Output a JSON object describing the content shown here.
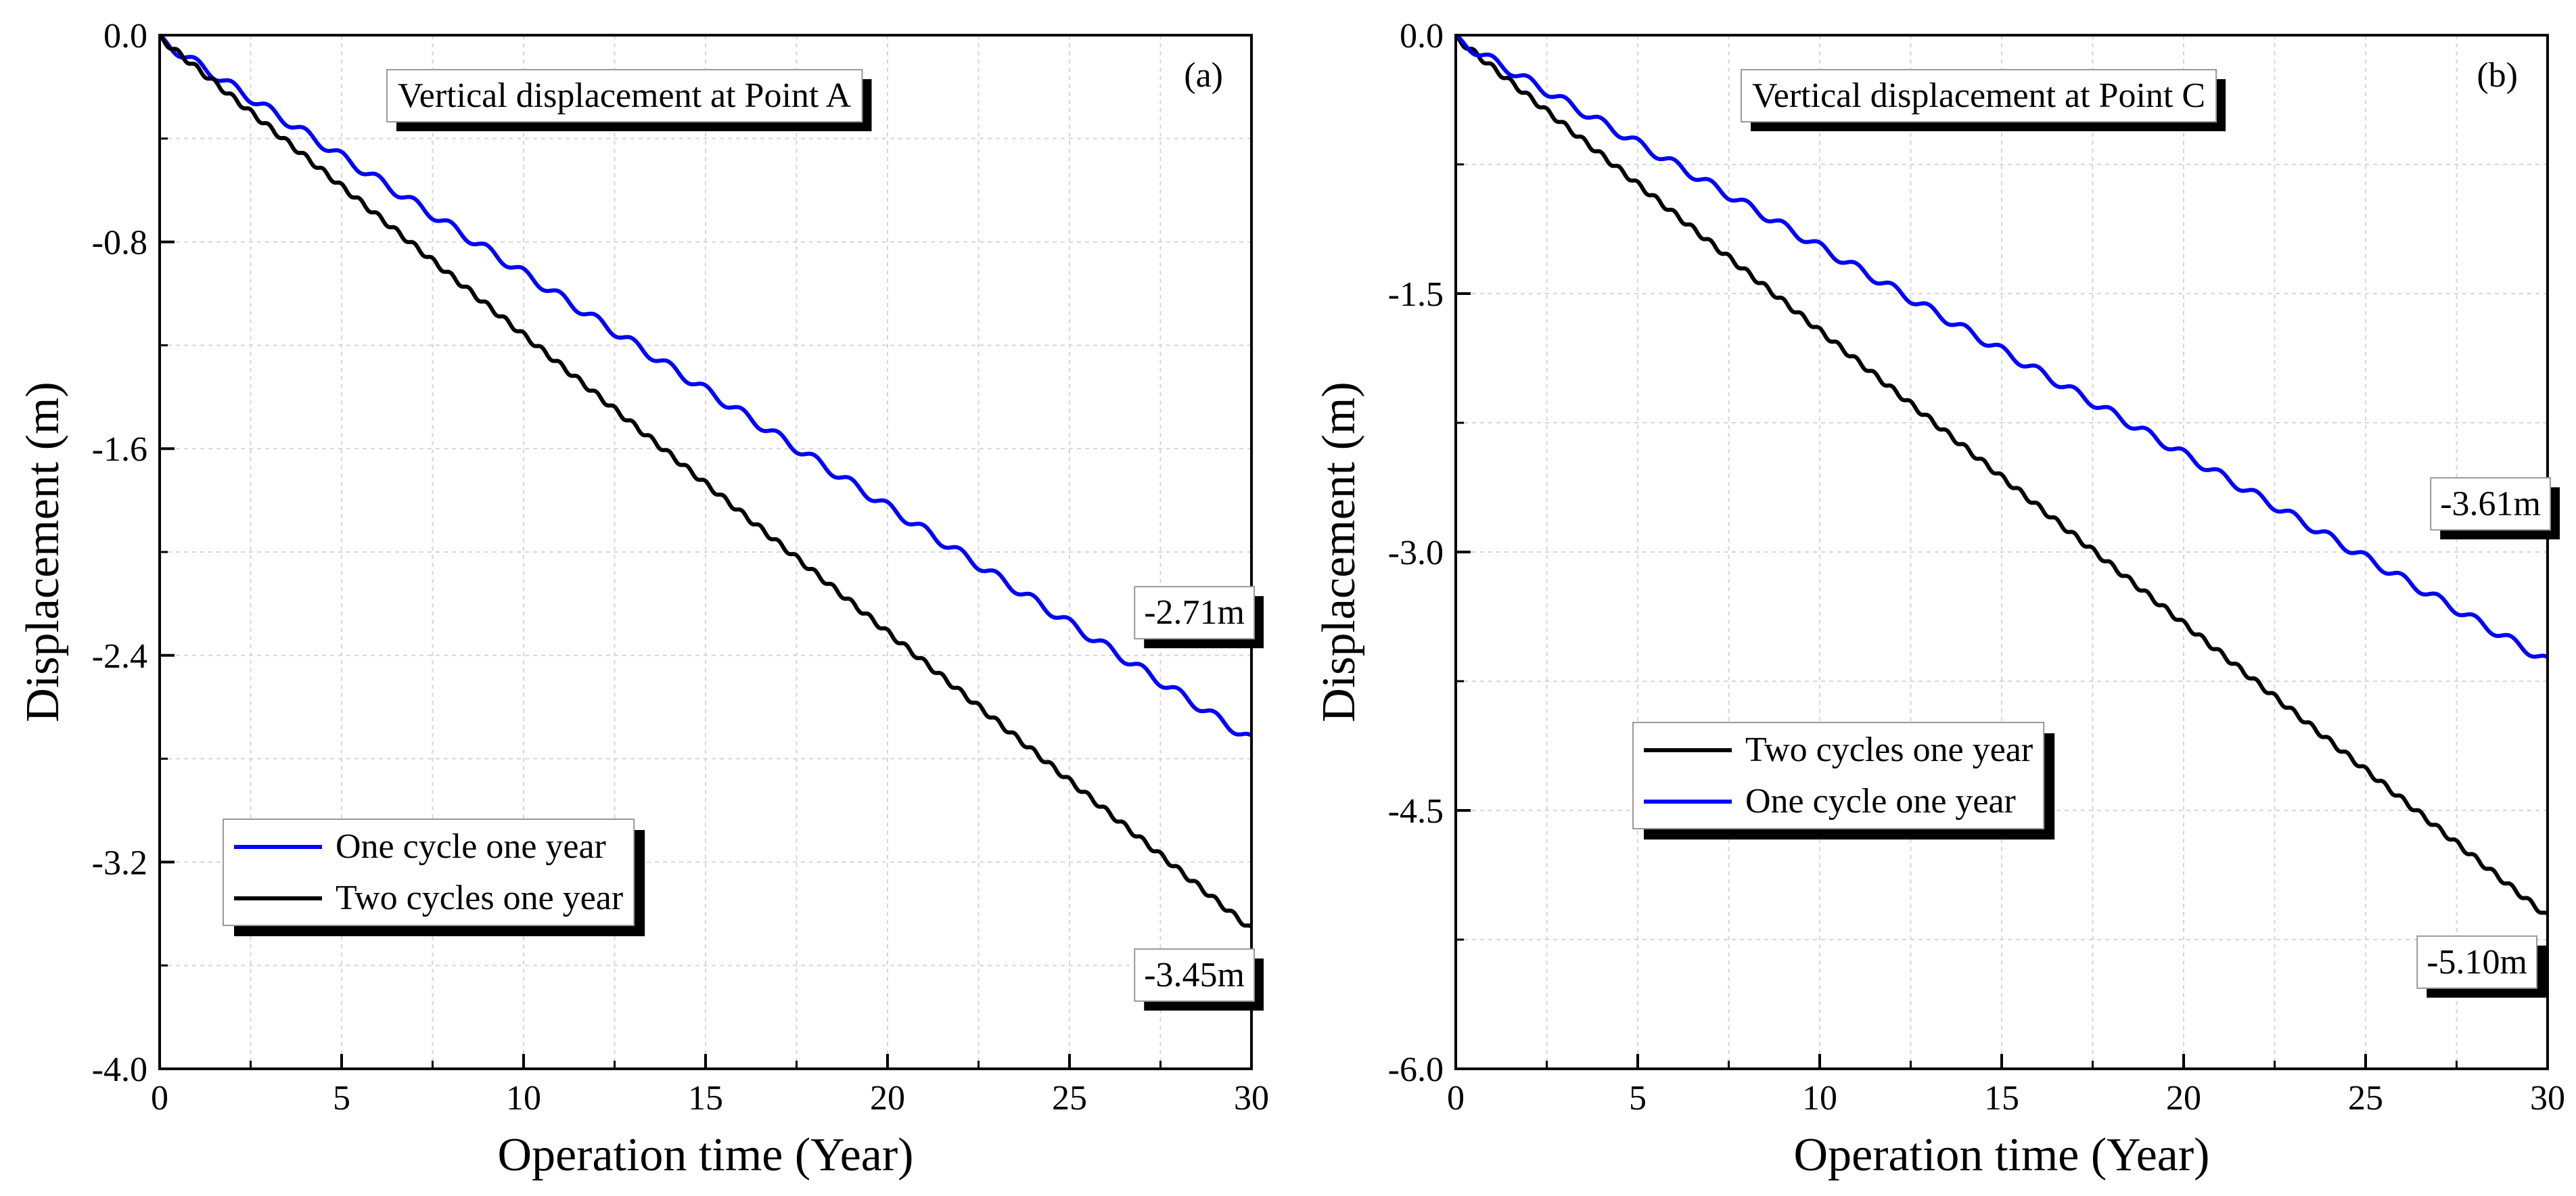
{
  "chart_data": [
    {
      "type": "line",
      "panel_label": "(a)",
      "title": "Vertical displacement at Point A",
      "xlabel": "Operation time (Year)",
      "ylabel": "Displacement (m)",
      "xlim": [
        0,
        30
      ],
      "ylim": [
        -4.0,
        0.0
      ],
      "xticks": [
        0,
        5,
        10,
        15,
        20,
        25,
        30
      ],
      "xtick_labels": [
        "0",
        "5",
        "10",
        "15",
        "20",
        "25",
        "30"
      ],
      "yticks": [
        0.0,
        -0.8,
        -1.6,
        -2.4,
        -3.2,
        -4.0
      ],
      "ytick_labels": [
        "0.0",
        "-0.8",
        "-1.6",
        "-2.4",
        "-3.2",
        "-4.0"
      ],
      "grid": true,
      "legend_position": "bottom-left",
      "series": [
        {
          "name": "One cycle one year",
          "color": "#0000ff",
          "final_value": -2.71,
          "cycles_per_year": 1,
          "wave_amplitude": 0.035
        },
        {
          "name": "Two cycles one year",
          "color": "#000000",
          "final_value": -3.45,
          "cycles_per_year": 2,
          "wave_amplitude": 0.02
        }
      ],
      "annotations": [
        {
          "text": "-2.71m",
          "color": "#0000ff",
          "series": 0
        },
        {
          "text": "-3.45m",
          "color": "#000000",
          "series": 1
        }
      ]
    },
    {
      "type": "line",
      "panel_label": "(b)",
      "title": "Vertical displacement at Point C",
      "xlabel": "Operation time (Year)",
      "ylabel": "Displacement (m)",
      "xlim": [
        0,
        30
      ],
      "ylim": [
        -6.0,
        0.0
      ],
      "xticks": [
        0,
        5,
        10,
        15,
        20,
        25,
        30
      ],
      "xtick_labels": [
        "0",
        "5",
        "10",
        "15",
        "20",
        "25",
        "30"
      ],
      "yticks": [
        0.0,
        -1.5,
        -3.0,
        -4.5,
        -6.0
      ],
      "ytick_labels": [
        "0.0",
        "-1.5",
        "-3.0",
        "-4.5",
        "-6.0"
      ],
      "grid": true,
      "legend_position": "center-left",
      "series": [
        {
          "name": "Two cycles one year",
          "color": "#000000",
          "final_value": -5.1,
          "cycles_per_year": 2,
          "wave_amplitude": 0.03
        },
        {
          "name": "One cycle one year",
          "color": "#0000ff",
          "final_value": -3.61,
          "cycles_per_year": 1,
          "wave_amplitude": 0.05
        }
      ],
      "annotations": [
        {
          "text": "-3.61m",
          "color": "#0000ff",
          "series": 1
        },
        {
          "text": "-5.10m",
          "color": "#000000",
          "series": 0
        }
      ]
    }
  ]
}
